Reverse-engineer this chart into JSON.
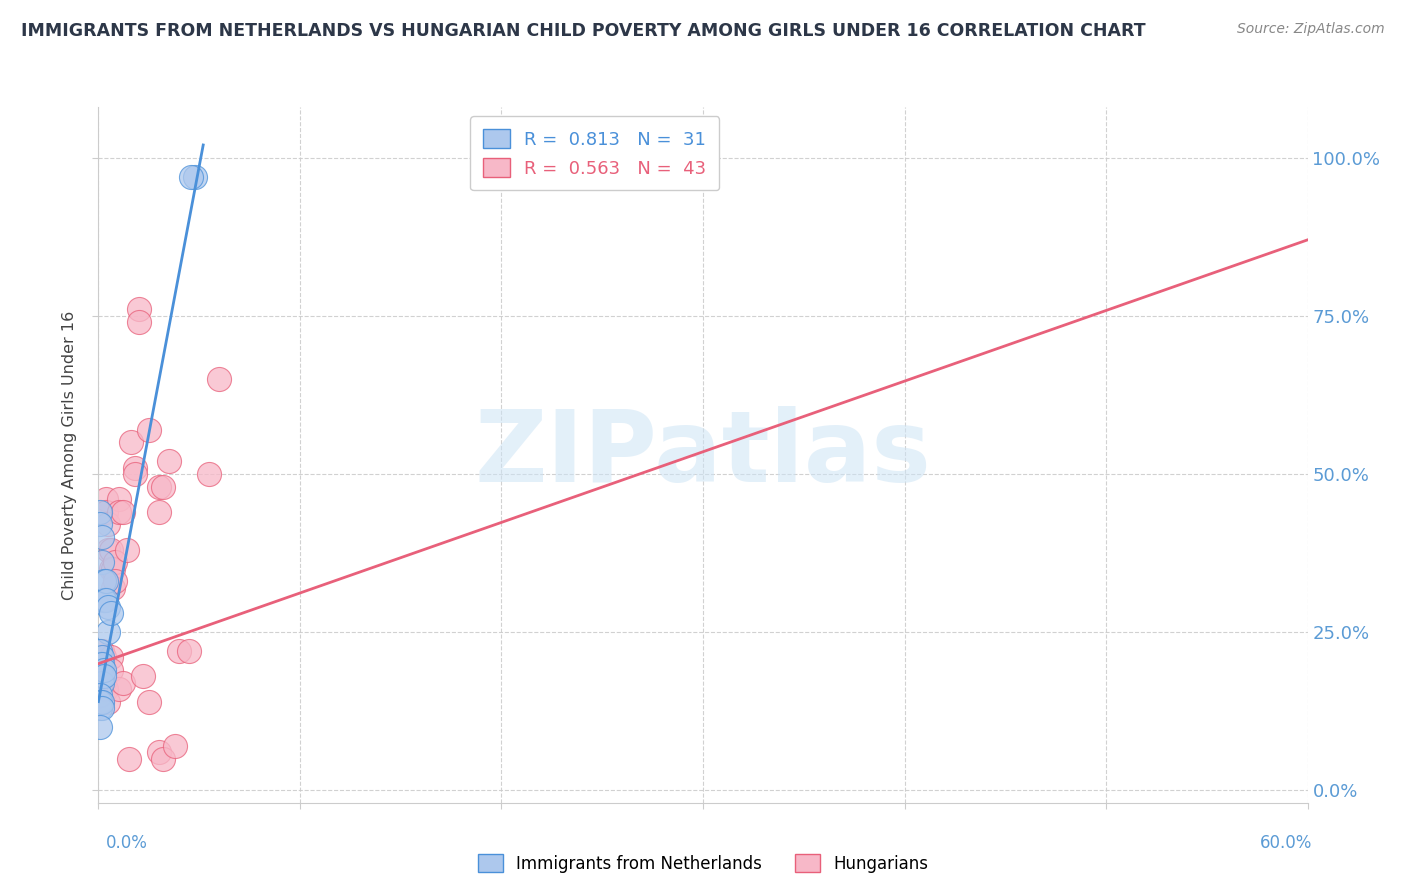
{
  "title": "IMMIGRANTS FROM NETHERLANDS VS HUNGARIAN CHILD POVERTY AMONG GIRLS UNDER 16 CORRELATION CHART",
  "source": "Source: ZipAtlas.com",
  "ylabel": "Child Poverty Among Girls Under 16",
  "ytick_vals": [
    0.0,
    0.25,
    0.5,
    0.75,
    1.0
  ],
  "ytick_labels": [
    "0.0%",
    "25.0%",
    "50.0%",
    "75.0%",
    "100.0%"
  ],
  "xlim": [
    0.0,
    0.6
  ],
  "ylim": [
    -0.02,
    1.08
  ],
  "blue_color": "#adc8ed",
  "pink_color": "#f7b8c8",
  "blue_line_color": "#4a90d9",
  "pink_line_color": "#e8607a",
  "watermark": "ZIPatlas",
  "blue_scatter": [
    [
      0.001,
      0.44
    ],
    [
      0.001,
      0.42
    ],
    [
      0.002,
      0.4
    ],
    [
      0.002,
      0.36
    ],
    [
      0.003,
      0.33
    ],
    [
      0.003,
      0.3
    ],
    [
      0.003,
      0.3
    ],
    [
      0.004,
      0.33
    ],
    [
      0.004,
      0.3
    ],
    [
      0.005,
      0.29
    ],
    [
      0.005,
      0.25
    ],
    [
      0.006,
      0.28
    ],
    [
      0.001,
      0.22
    ],
    [
      0.001,
      0.2
    ],
    [
      0.001,
      0.2
    ],
    [
      0.001,
      0.19
    ],
    [
      0.001,
      0.18
    ],
    [
      0.002,
      0.21
    ],
    [
      0.002,
      0.2
    ],
    [
      0.002,
      0.18
    ],
    [
      0.002,
      0.17
    ],
    [
      0.003,
      0.19
    ],
    [
      0.003,
      0.18
    ],
    [
      0.001,
      0.15
    ],
    [
      0.001,
      0.14
    ],
    [
      0.001,
      0.13
    ],
    [
      0.002,
      0.14
    ],
    [
      0.002,
      0.13
    ],
    [
      0.001,
      0.1
    ],
    [
      0.048,
      0.97
    ],
    [
      0.046,
      0.97
    ]
  ],
  "pink_scatter": [
    [
      0.002,
      0.22
    ],
    [
      0.003,
      0.21
    ],
    [
      0.004,
      0.46
    ],
    [
      0.004,
      0.44
    ],
    [
      0.005,
      0.42
    ],
    [
      0.005,
      0.38
    ],
    [
      0.006,
      0.38
    ],
    [
      0.006,
      0.35
    ],
    [
      0.007,
      0.35
    ],
    [
      0.007,
      0.32
    ],
    [
      0.008,
      0.36
    ],
    [
      0.008,
      0.33
    ],
    [
      0.01,
      0.46
    ],
    [
      0.01,
      0.44
    ],
    [
      0.012,
      0.44
    ],
    [
      0.014,
      0.38
    ],
    [
      0.016,
      0.55
    ],
    [
      0.018,
      0.51
    ],
    [
      0.018,
      0.5
    ],
    [
      0.02,
      0.76
    ],
    [
      0.02,
      0.74
    ],
    [
      0.025,
      0.57
    ],
    [
      0.03,
      0.44
    ],
    [
      0.03,
      0.48
    ],
    [
      0.032,
      0.48
    ],
    [
      0.035,
      0.52
    ],
    [
      0.04,
      0.22
    ],
    [
      0.045,
      0.22
    ],
    [
      0.055,
      0.5
    ],
    [
      0.06,
      0.65
    ],
    [
      0.002,
      0.19
    ],
    [
      0.003,
      0.17
    ],
    [
      0.004,
      0.16
    ],
    [
      0.005,
      0.14
    ],
    [
      0.006,
      0.21
    ],
    [
      0.006,
      0.19
    ],
    [
      0.01,
      0.16
    ],
    [
      0.012,
      0.17
    ],
    [
      0.015,
      0.05
    ],
    [
      0.022,
      0.18
    ],
    [
      0.025,
      0.14
    ],
    [
      0.03,
      0.06
    ],
    [
      0.032,
      0.05
    ],
    [
      0.038,
      0.07
    ]
  ],
  "blue_line_x": [
    0.0,
    0.052
  ],
  "blue_line_y": [
    0.14,
    1.02
  ],
  "pink_line_x": [
    0.0,
    0.6
  ],
  "pink_line_y": [
    0.2,
    0.87
  ]
}
